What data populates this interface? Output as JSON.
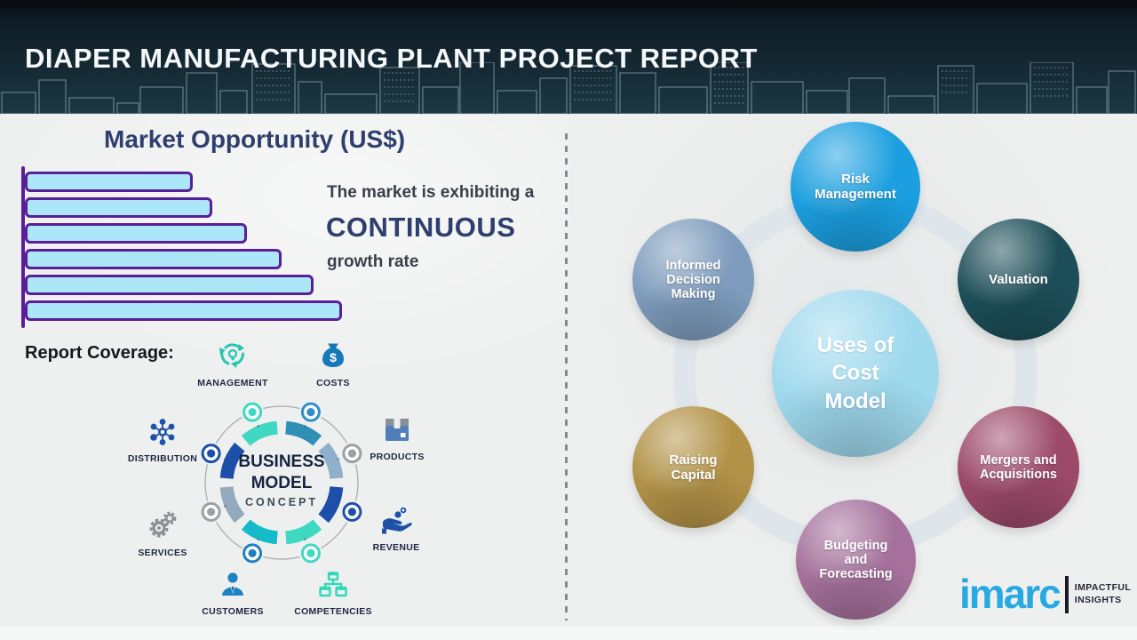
{
  "header": {
    "title": "DIAPER MANUFACTURING PLANT PROJECT REPORT"
  },
  "market_opportunity": {
    "title": "Market Opportunity (US$)",
    "annotation_line1": "The market is exhibiting a",
    "annotation_line2": "CONTINUOUS",
    "annotation_line3": "growth rate"
  },
  "chart_data": {
    "type": "bar",
    "orientation": "horizontal",
    "title": "Market Opportunity (US$)",
    "categories": [
      "",
      "",
      "",
      "",
      "",
      ""
    ],
    "values_relative_pct": [
      53,
      59,
      70,
      81,
      91,
      100
    ],
    "note": "six unlabeled bars growing top to bottom; lengths estimated as % of longest bar; no axis tick labels shown",
    "bar_fill": "#ace6f9",
    "bar_border": "#5b1e99",
    "axis_color": "#5b1e99",
    "grid": false,
    "legend": false
  },
  "report_coverage": {
    "title": "Report Coverage:",
    "center_line1": "BUSINESS",
    "center_line2": "MODEL",
    "center_line3": "CONCEPT",
    "items": [
      {
        "label": "MANAGEMENT",
        "icon": "management-cycle-icon",
        "color": "#26c6b0"
      },
      {
        "label": "COSTS",
        "icon": "money-bag-icon",
        "color": "#1779ba"
      },
      {
        "label": "DISTRIBUTION",
        "icon": "network-hub-icon",
        "color": "#1d52a8"
      },
      {
        "label": "PRODUCTS",
        "icon": "box-icon",
        "color": "#4f7fba"
      },
      {
        "label": "SERVICES",
        "icon": "gears-icon",
        "color": "#8d9196"
      },
      {
        "label": "REVENUE",
        "icon": "hand-coins-icon",
        "color": "#1d52a8"
      },
      {
        "label": "CUSTOMERS",
        "icon": "person-icon",
        "color": "#1a83c0"
      },
      {
        "label": "COMPETENCIES",
        "icon": "org-chart-icon",
        "color": "#2fd9b8"
      }
    ]
  },
  "uses_of_cost_model": {
    "center_line1": "Uses of",
    "center_line2": "Cost Model",
    "center_color": "#9fd9ee",
    "items": [
      {
        "label": "Risk Management",
        "color": "#1b9fe0"
      },
      {
        "label": "Valuation",
        "color": "#1d4e58"
      },
      {
        "label": "Informed Decision Making",
        "color": "#7e9cbd"
      },
      {
        "label": "Mergers and Acquisitions",
        "color": "#9c4a68"
      },
      {
        "label": "Raising Capital",
        "color": "#b29247"
      },
      {
        "label": "Budgeting and Forecasting",
        "color": "#a5719c"
      }
    ]
  },
  "logo": {
    "brand": "imarc",
    "brand_color": "#29a9e1",
    "tagline_line1": "IMPACTFUL",
    "tagline_line2": "INSIGHTS"
  },
  "colors": {
    "header_bg": "#142832",
    "accent_navy": "#2e3f6e",
    "purple": "#5b1e99",
    "background": "#eef0ef",
    "divider_gray": "#85898f"
  }
}
